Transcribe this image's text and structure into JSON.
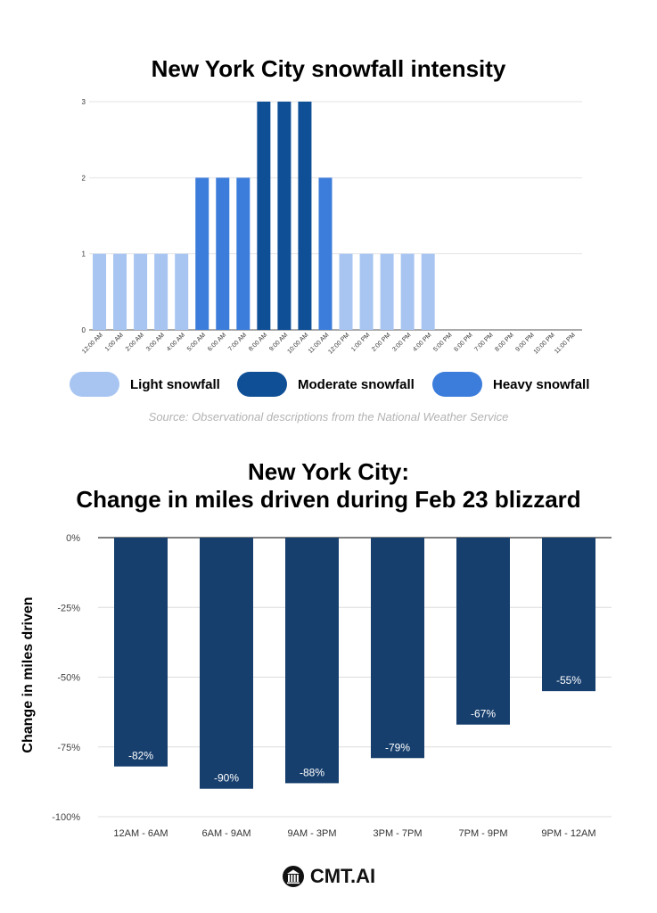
{
  "colors": {
    "light": "#a8c5f2",
    "moderate": "#0f4f96",
    "heavy": "#3c7ddb",
    "bars2": "#173f6e",
    "grid": "#e3e3e3",
    "axis": "#555555"
  },
  "chart_data": [
    {
      "type": "bar",
      "title": "New York City snowfall intensity",
      "categories": [
        "12:00 AM",
        "1:00 AM",
        "2:00 AM",
        "3:00 AM",
        "4:00 AM",
        "5:00 AM",
        "6:00 AM",
        "7:00 AM",
        "8:00 AM",
        "9:00 AM",
        "10:00 AM",
        "11:00 AM",
        "12:00 PM",
        "1:00 PM",
        "2:00 PM",
        "3:00 PM",
        "4:00 PM",
        "5:00 PM",
        "6:00 PM",
        "7:00 PM",
        "8:00 PM",
        "9:00 PM",
        "10:00 PM",
        "11:00 PM"
      ],
      "values": [
        1,
        1,
        1,
        1,
        1,
        2,
        2,
        2,
        3,
        3,
        3,
        2,
        1,
        1,
        1,
        1,
        1,
        0,
        0,
        0,
        0,
        0,
        0,
        0
      ],
      "ylim": [
        0,
        3
      ],
      "yticks": [
        "0",
        "1",
        "2",
        "3"
      ],
      "xlabel": "",
      "ylabel": "",
      "grid": true,
      "legend": [
        {
          "name": "Light snowfall",
          "color_key": "light"
        },
        {
          "name": "Moderate snowfall",
          "color_key": "moderate"
        },
        {
          "name": "Heavy snowfall",
          "color_key": "heavy"
        }
      ],
      "legend_position": "bottom",
      "source": "Source: Observational descriptions from the National Weather Service"
    },
    {
      "type": "bar",
      "title_lines": [
        "New York City:",
        "Change in miles driven during Feb 23 blizzard"
      ],
      "categories": [
        "12AM - 6AM",
        "6AM - 9AM",
        "9AM - 3PM",
        "3PM - 7PM",
        "7PM - 9PM",
        "9PM - 12AM"
      ],
      "values": [
        -82,
        -90,
        -88,
        -79,
        -67,
        -55
      ],
      "data_labels": [
        "-82%",
        "-90%",
        "-88%",
        "-79%",
        "-67%",
        "-55%"
      ],
      "ylim": [
        -100,
        0
      ],
      "yticks": [
        "0%",
        "-25%",
        "-50%",
        "-75%",
        "-100%"
      ],
      "ylabel": "Change in miles driven",
      "xlabel": "",
      "grid": true
    }
  ],
  "logo": {
    "text": "CMT.AI",
    "icon": "cmt-logo-icon"
  }
}
